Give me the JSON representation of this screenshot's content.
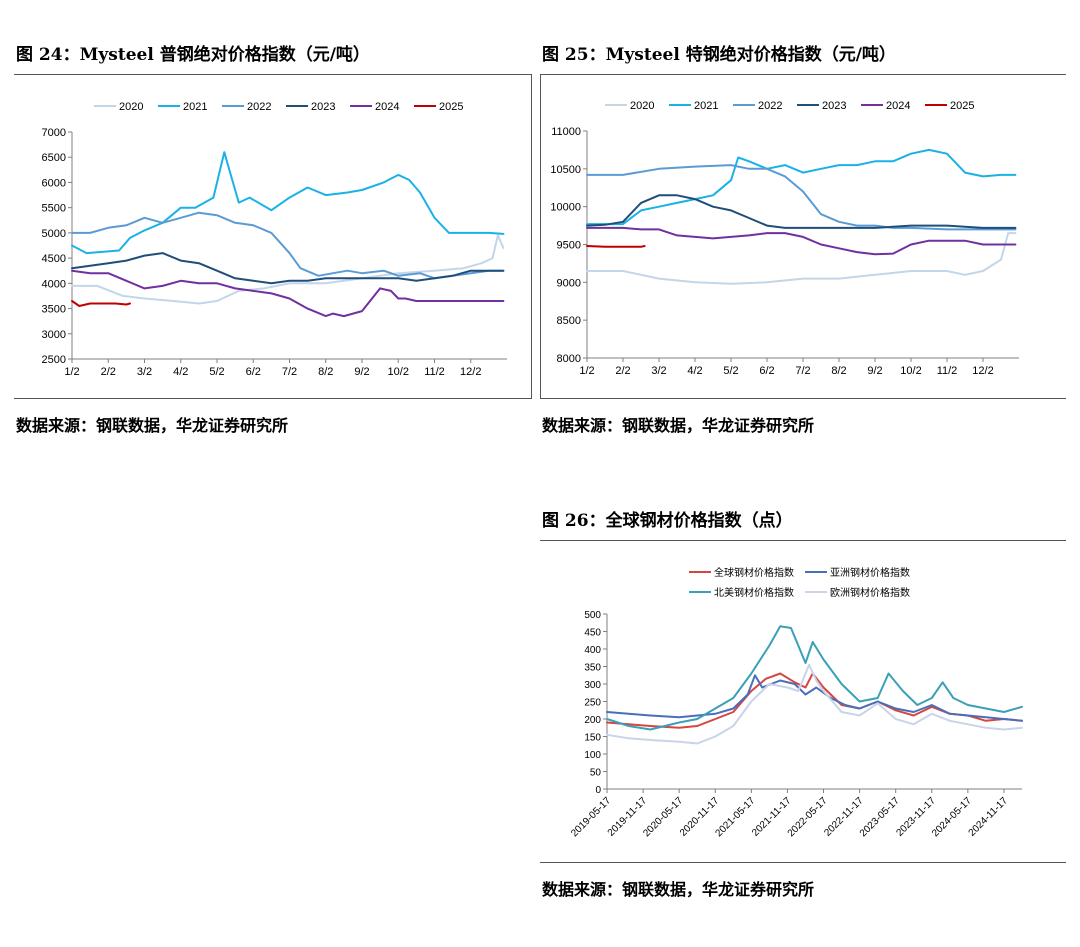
{
  "figures": [
    {
      "title": "图 24：Mysteel 普钢绝对价格指数（元/吨）",
      "source": "数据来源：钢联数据，华龙证券研究所"
    },
    {
      "title": "图 25：Mysteel 特钢绝对价格指数（元/吨）",
      "source": "数据来源：钢联数据，华龙证券研究所"
    },
    {
      "title": "图 26：全球钢材价格指数（点）",
      "source": "数据来源：钢联数据，华龙证券研究所"
    }
  ],
  "chart_data": [
    {
      "type": "line",
      "title": "图 24：Mysteel 普钢绝对价格指数（元/吨）",
      "ylim": [
        2500,
        7000
      ],
      "yticks": [
        2500,
        3000,
        3500,
        4000,
        4500,
        5000,
        5500,
        6000,
        6500,
        7000
      ],
      "xlim": [
        0,
        12
      ],
      "xtick_labels": [
        "1/2",
        "2/2",
        "3/2",
        "4/2",
        "5/2",
        "6/2",
        "7/2",
        "8/2",
        "9/2",
        "10/2",
        "11/2",
        "12/2"
      ],
      "legend": "top",
      "series": [
        {
          "name": "2020",
          "color": "#c2d6ea",
          "x": [
            0,
            0.7,
            1.4,
            2.0,
            2.8,
            3.5,
            4.0,
            4.6,
            5.3,
            6.0,
            7.0,
            8.0,
            9.0,
            10.0,
            10.8,
            11.3,
            11.6,
            11.75,
            11.9
          ],
          "y": [
            3950,
            3950,
            3750,
            3700,
            3650,
            3600,
            3650,
            3850,
            3900,
            4000,
            4000,
            4100,
            4200,
            4250,
            4300,
            4400,
            4500,
            4950,
            4700
          ]
        },
        {
          "name": "2021",
          "color": "#1ab2e6",
          "x": [
            0,
            0.4,
            1.3,
            1.6,
            2.0,
            2.5,
            3.0,
            3.4,
            3.9,
            4.2,
            4.4,
            4.6,
            4.9,
            5.5,
            6.0,
            6.5,
            7.0,
            7.6,
            8.0,
            8.6,
            9.0,
            9.3,
            9.6,
            10.0,
            10.4,
            10.8,
            11.0,
            11.5,
            11.9
          ],
          "y": [
            4750,
            4600,
            4650,
            4900,
            5050,
            5200,
            5500,
            5500,
            5700,
            6600,
            6100,
            5600,
            5700,
            5450,
            5700,
            5900,
            5750,
            5800,
            5850,
            6000,
            6150,
            6050,
            5800,
            5300,
            5000,
            5000,
            5000,
            5000,
            4980
          ]
        },
        {
          "name": "2022",
          "color": "#5b9bd5",
          "x": [
            0,
            0.5,
            1.0,
            1.5,
            2.0,
            2.5,
            3.0,
            3.5,
            4.0,
            4.5,
            5.0,
            5.5,
            6.0,
            6.3,
            6.8,
            7.2,
            7.6,
            8.0,
            8.6,
            9.0,
            9.6,
            10.0,
            10.5,
            11.0,
            11.5,
            11.9
          ],
          "y": [
            5000,
            5000,
            5100,
            5150,
            5300,
            5200,
            5300,
            5400,
            5350,
            5200,
            5150,
            5000,
            4600,
            4300,
            4150,
            4200,
            4250,
            4200,
            4250,
            4150,
            4200,
            4100,
            4150,
            4200,
            4250,
            4250
          ]
        },
        {
          "name": "2023",
          "color": "#1f4e79",
          "x": [
            0,
            0.5,
            1.0,
            1.5,
            2.0,
            2.5,
            3.0,
            3.5,
            4.0,
            4.5,
            5.0,
            5.5,
            6.0,
            6.5,
            7.0,
            7.6,
            8.0,
            8.5,
            9.0,
            9.5,
            10.0,
            10.5,
            11.0,
            11.5,
            11.9
          ],
          "y": [
            4300,
            4350,
            4400,
            4450,
            4550,
            4600,
            4450,
            4400,
            4250,
            4100,
            4050,
            4000,
            4050,
            4050,
            4100,
            4100,
            4100,
            4100,
            4100,
            4050,
            4100,
            4150,
            4250,
            4250,
            4250
          ]
        },
        {
          "name": "2024",
          "color": "#7030a0",
          "x": [
            0,
            0.5,
            1.0,
            1.5,
            2.0,
            2.5,
            3.0,
            3.5,
            4.0,
            4.5,
            5.0,
            5.5,
            6.0,
            6.5,
            7.0,
            7.2,
            7.5,
            8.0,
            8.5,
            8.8,
            9.0,
            9.2,
            9.5,
            10.0,
            10.5,
            11.0,
            11.5,
            11.9
          ],
          "y": [
            4250,
            4200,
            4200,
            4050,
            3900,
            3950,
            4050,
            4000,
            4000,
            3900,
            3850,
            3800,
            3700,
            3500,
            3350,
            3400,
            3350,
            3450,
            3900,
            3850,
            3700,
            3700,
            3650,
            3650,
            3650,
            3650,
            3650,
            3650
          ]
        },
        {
          "name": "2025",
          "color": "#c00000",
          "x": [
            0,
            0.2,
            0.5,
            0.9,
            1.2,
            1.5,
            1.6
          ],
          "y": [
            3650,
            3550,
            3600,
            3600,
            3600,
            3580,
            3600
          ]
        }
      ]
    },
    {
      "type": "line",
      "title": "图 25：Mysteel 特钢绝对价格指数（元/吨）",
      "ylim": [
        8000,
        11000
      ],
      "yticks": [
        8000,
        8500,
        9000,
        9500,
        10000,
        10500,
        11000
      ],
      "xlim": [
        0,
        12
      ],
      "xtick_labels": [
        "1/2",
        "2/2",
        "3/2",
        "4/2",
        "5/2",
        "6/2",
        "7/2",
        "8/2",
        "9/2",
        "10/2",
        "11/2",
        "12/2"
      ],
      "legend": "top",
      "series": [
        {
          "name": "2020",
          "color": "#c2d6ea",
          "x": [
            0,
            1.0,
            2.0,
            3.0,
            4.0,
            5.0,
            6.0,
            7.0,
            8.0,
            9.0,
            9.5,
            10.0,
            10.5,
            11.0,
            11.5,
            11.7,
            11.9
          ],
          "y": [
            9150,
            9150,
            9050,
            9000,
            8980,
            9000,
            9050,
            9050,
            9100,
            9150,
            9150,
            9150,
            9100,
            9150,
            9300,
            9650,
            9650
          ]
        },
        {
          "name": "2021",
          "color": "#1ab2e6",
          "x": [
            0,
            0.8,
            1.0,
            1.5,
            2.0,
            2.5,
            3.0,
            3.5,
            4.0,
            4.2,
            4.5,
            5.0,
            5.5,
            6.0,
            6.5,
            7.0,
            7.5,
            8.0,
            8.5,
            9.0,
            9.5,
            10.0,
            10.5,
            11.0,
            11.5,
            11.9
          ],
          "y": [
            9770,
            9770,
            9770,
            9950,
            10000,
            10050,
            10100,
            10150,
            10350,
            10650,
            10600,
            10500,
            10550,
            10450,
            10500,
            10550,
            10550,
            10600,
            10600,
            10700,
            10750,
            10700,
            10450,
            10400,
            10420,
            10420
          ]
        },
        {
          "name": "2022",
          "color": "#5b9bd5",
          "x": [
            0,
            1.0,
            2.0,
            3.0,
            4.0,
            4.5,
            5.0,
            5.5,
            6.0,
            6.5,
            7.0,
            7.5,
            8.0,
            8.5,
            9.0,
            10.0,
            11.0,
            11.9
          ],
          "y": [
            10420,
            10420,
            10500,
            10530,
            10550,
            10500,
            10500,
            10400,
            10200,
            9900,
            9800,
            9750,
            9750,
            9720,
            9720,
            9700,
            9700,
            9700
          ]
        },
        {
          "name": "2023",
          "color": "#1f4e79",
          "x": [
            0,
            0.5,
            1.0,
            1.5,
            2.0,
            2.5,
            3.0,
            3.5,
            4.0,
            4.5,
            5.0,
            5.5,
            6.0,
            7.0,
            8.0,
            9.0,
            10.0,
            11.0,
            11.9
          ],
          "y": [
            9750,
            9760,
            9800,
            10050,
            10150,
            10150,
            10100,
            10000,
            9950,
            9850,
            9750,
            9720,
            9720,
            9720,
            9720,
            9750,
            9750,
            9720,
            9720
          ]
        },
        {
          "name": "2024",
          "color": "#7030a0",
          "x": [
            0,
            0.5,
            1.0,
            1.5,
            2.0,
            2.5,
            3.0,
            3.5,
            4.0,
            4.5,
            5.0,
            5.5,
            6.0,
            6.5,
            7.0,
            7.5,
            8.0,
            8.5,
            9.0,
            9.5,
            10.0,
            10.5,
            11.0,
            11.5,
            11.9
          ],
          "y": [
            9720,
            9720,
            9720,
            9700,
            9700,
            9620,
            9600,
            9580,
            9600,
            9620,
            9650,
            9650,
            9600,
            9500,
            9450,
            9400,
            9370,
            9380,
            9500,
            9550,
            9550,
            9550,
            9500,
            9500,
            9500
          ]
        },
        {
          "name": "2025",
          "color": "#c00000",
          "x": [
            0,
            0.5,
            1.0,
            1.5,
            1.6
          ],
          "y": [
            9480,
            9470,
            9470,
            9470,
            9480
          ]
        }
      ]
    },
    {
      "type": "line",
      "title": "图 26：全球钢材价格指数（点）",
      "ylim": [
        0,
        500
      ],
      "yticks": [
        0,
        50,
        100,
        150,
        200,
        250,
        300,
        350,
        400,
        450,
        500
      ],
      "xlim": [
        0,
        11.5
      ],
      "xtick_labels": [
        "2019-05-17",
        "2019-11-17",
        "2020-05-17",
        "2020-11-17",
        "2021-05-17",
        "2021-11-17",
        "2022-05-17",
        "2022-11-17",
        "2023-05-17",
        "2023-11-17",
        "2024-05-17",
        "2024-11-17"
      ],
      "legend": "top",
      "series": [
        {
          "name": "全球钢材价格指数",
          "color": "#d64541",
          "x": [
            0,
            0.6,
            1.2,
            2.0,
            2.5,
            3.0,
            3.5,
            4.0,
            4.4,
            4.8,
            5.2,
            5.5,
            5.7,
            6.0,
            6.5,
            7.0,
            7.5,
            8.0,
            8.5,
            9.0,
            9.5,
            10.0,
            10.5,
            11.0,
            11.5
          ],
          "y": [
            190,
            185,
            180,
            175,
            180,
            200,
            220,
            280,
            315,
            330,
            305,
            290,
            330,
            290,
            240,
            230,
            250,
            225,
            210,
            235,
            215,
            210,
            195,
            200,
            195
          ]
        },
        {
          "name": "亚洲钢材价格指数",
          "color": "#4a6fba",
          "x": [
            0,
            0.6,
            1.2,
            2.0,
            2.5,
            3.0,
            3.5,
            3.9,
            4.1,
            4.3,
            4.8,
            5.2,
            5.5,
            5.8,
            6.2,
            6.6,
            7.0,
            7.5,
            8.0,
            8.5,
            9.0,
            9.5,
            10.0,
            10.5,
            11.0,
            11.5
          ],
          "y": [
            220,
            215,
            210,
            205,
            210,
            215,
            230,
            270,
            325,
            290,
            310,
            300,
            270,
            290,
            260,
            240,
            230,
            250,
            230,
            220,
            240,
            215,
            210,
            205,
            200,
            195
          ]
        },
        {
          "name": "北美钢材价格指数",
          "color": "#3aa0b8",
          "x": [
            0,
            0.6,
            1.2,
            2.0,
            2.5,
            3.0,
            3.5,
            4.0,
            4.5,
            4.8,
            5.1,
            5.5,
            5.7,
            6.0,
            6.5,
            7.0,
            7.5,
            7.8,
            8.2,
            8.6,
            9.0,
            9.3,
            9.6,
            10.0,
            10.5,
            11.0,
            11.5
          ],
          "y": [
            200,
            180,
            170,
            190,
            200,
            230,
            260,
            330,
            410,
            465,
            460,
            360,
            420,
            370,
            300,
            250,
            260,
            330,
            280,
            240,
            260,
            305,
            260,
            240,
            230,
            220,
            235
          ]
        },
        {
          "name": "欧洲钢材价格指数",
          "color": "#c9d3ea",
          "x": [
            0,
            0.6,
            1.2,
            2.0,
            2.5,
            3.0,
            3.5,
            4.0,
            4.5,
            5.0,
            5.3,
            5.6,
            5.8,
            6.0,
            6.5,
            7.0,
            7.5,
            8.0,
            8.5,
            9.0,
            9.5,
            10.0,
            10.5,
            11.0,
            11.5
          ],
          "y": [
            155,
            145,
            140,
            135,
            130,
            150,
            180,
            250,
            300,
            290,
            280,
            355,
            310,
            280,
            220,
            210,
            245,
            200,
            185,
            215,
            195,
            185,
            175,
            170,
            175
          ]
        }
      ]
    }
  ]
}
